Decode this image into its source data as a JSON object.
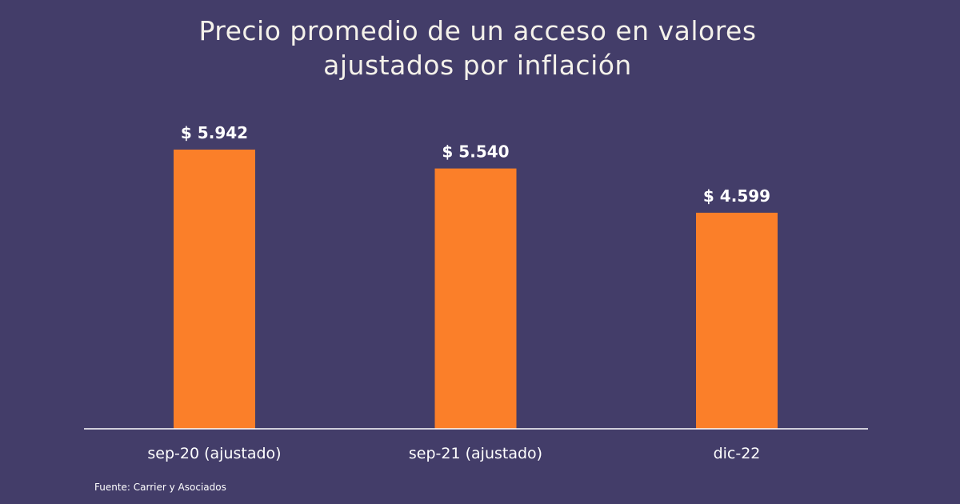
{
  "colors": {
    "background": "#433d69",
    "bar": "#fb7f29",
    "axis": "#ffffff",
    "text": "#ffffff"
  },
  "chart_data": {
    "type": "bar",
    "title_lines": [
      "Precio promedio de un acceso en valores",
      "ajustados por inflación"
    ],
    "categories": [
      "sep-20 (ajustado)",
      "sep-21 (ajustado)",
      "dic-22"
    ],
    "values": [
      5942,
      5540,
      4599
    ],
    "data_labels": [
      "$ 5.942",
      "$ 5.540",
      "$ 4.599"
    ],
    "xlabel": "",
    "ylabel": "",
    "ylim": [
      0,
      5942
    ],
    "grid": false,
    "legend": "none",
    "source": "Fuente: Carrier y Asociados"
  }
}
